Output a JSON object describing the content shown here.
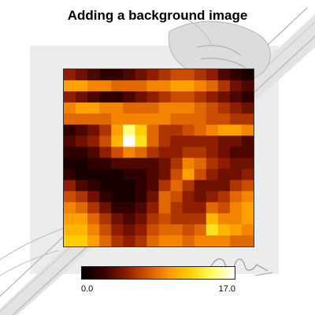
{
  "chart_data": {
    "type": "heatmap",
    "title": "Adding a background image",
    "colormap": "hot",
    "colormap_stops": [
      "#000000",
      "#3a0000",
      "#8b1a00",
      "#d35400",
      "#ff9800",
      "#ffd000",
      "#ffff66",
      "#ffffff"
    ],
    "value_range": [
      0.0,
      17.0
    ],
    "colorbar": {
      "min_label": "0.0",
      "max_label": "17.0",
      "placement": "bottom"
    },
    "grid": false,
    "rows": 16,
    "cols": 16,
    "values": [
      [
        5,
        4,
        3,
        2,
        2,
        3,
        4,
        5,
        6,
        7,
        7,
        6,
        5,
        3,
        2,
        1
      ],
      [
        10,
        10,
        9,
        9,
        8,
        8,
        8,
        9,
        9,
        10,
        10,
        9,
        8,
        6,
        4,
        3
      ],
      [
        5,
        4,
        3,
        2,
        2,
        3,
        4,
        5,
        6,
        7,
        7,
        6,
        5,
        4,
        3,
        2
      ],
      [
        9,
        10,
        10,
        9,
        9,
        8,
        8,
        8,
        9,
        9,
        9,
        8,
        7,
        6,
        5,
        4
      ],
      [
        8,
        8,
        8,
        8,
        9,
        9,
        9,
        9,
        9,
        8,
        8,
        8,
        7,
        7,
        6,
        6
      ],
      [
        2,
        3,
        4,
        6,
        10,
        15,
        12,
        8,
        6,
        6,
        7,
        8,
        9,
        10,
        10,
        9
      ],
      [
        3,
        4,
        5,
        7,
        11,
        17,
        13,
        8,
        6,
        5,
        5,
        5,
        5,
        4,
        4,
        3
      ],
      [
        2,
        2,
        3,
        5,
        7,
        9,
        8,
        6,
        5,
        5,
        6,
        6,
        5,
        4,
        3,
        3
      ],
      [
        1,
        1,
        2,
        2,
        3,
        3,
        3,
        3,
        4,
        6,
        9,
        8,
        6,
        5,
        4,
        4
      ],
      [
        2,
        1,
        1,
        1,
        1,
        2,
        2,
        3,
        4,
        7,
        10,
        7,
        5,
        4,
        4,
        5
      ],
      [
        5,
        3,
        2,
        1,
        1,
        1,
        2,
        3,
        6,
        8,
        6,
        4,
        4,
        4,
        6,
        7
      ],
      [
        7,
        6,
        4,
        2,
        1,
        1,
        2,
        4,
        8,
        7,
        5,
        4,
        5,
        6,
        8,
        9
      ],
      [
        9,
        8,
        6,
        4,
        2,
        2,
        3,
        5,
        8,
        6,
        5,
        5,
        8,
        7,
        9,
        10
      ],
      [
        10,
        10,
        8,
        6,
        4,
        3,
        4,
        6,
        7,
        6,
        6,
        6,
        11,
        9,
        9,
        10
      ],
      [
        11,
        11,
        9,
        7,
        5,
        4,
        5,
        7,
        8,
        8,
        7,
        8,
        13,
        11,
        10,
        9
      ],
      [
        12,
        12,
        10,
        8,
        6,
        5,
        6,
        8,
        9,
        9,
        8,
        9,
        9,
        9,
        8,
        8
      ]
    ]
  }
}
